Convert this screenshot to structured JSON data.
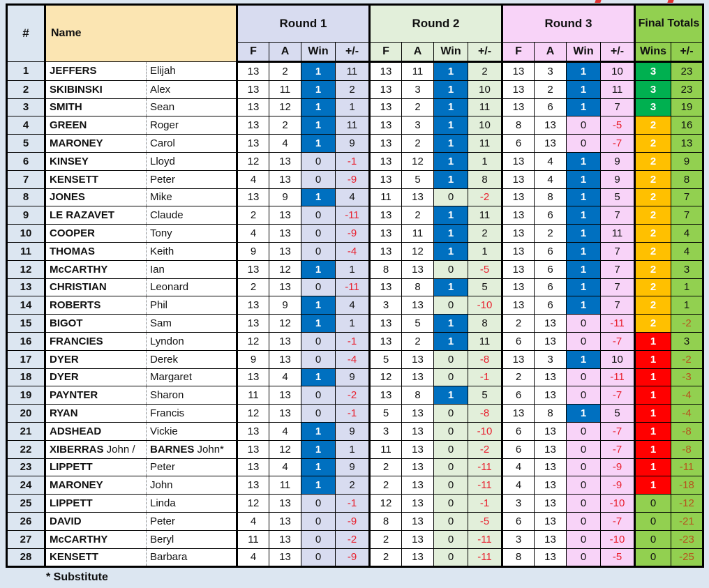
{
  "header": {
    "num": "#",
    "name": "Name",
    "rounds": [
      "Round 1",
      "Round 2",
      "Round 3"
    ],
    "round_cols": [
      "F",
      "A",
      "Win",
      "+/-"
    ],
    "final": "Final Totals",
    "final_cols": [
      "Wins",
      "+/-"
    ]
  },
  "footnote": "* Substitute",
  "colors": {
    "page_bg": "#DCE6F1",
    "name_header_bg": "#FBE5B2",
    "round1_tint": "#D8DCF0",
    "round2_tint": "#E2EFDA",
    "round3_tint": "#F8D3F8",
    "win_blue": "#0070C0",
    "wins3_green": "#00B050",
    "wins2_orange": "#FFC000",
    "wins1_red": "#FF0000",
    "final_green": "#92D050",
    "negative_red": "#E8202E",
    "negative_on_green": "#B5541E"
  },
  "rows": [
    {
      "num": 1,
      "name1b": "JEFFERS",
      "name1": "",
      "name2b": "",
      "name2": "Elijah",
      "r1": [
        13,
        2,
        1,
        11
      ],
      "r2": [
        13,
        11,
        1,
        2
      ],
      "r3": [
        13,
        3,
        1,
        10
      ],
      "wins": 3,
      "total": 23
    },
    {
      "num": 2,
      "name1b": "SKIBINSKI",
      "name1": "",
      "name2b": "",
      "name2": "Alex",
      "r1": [
        13,
        11,
        1,
        2
      ],
      "r2": [
        13,
        3,
        1,
        10
      ],
      "r3": [
        13,
        2,
        1,
        11
      ],
      "wins": 3,
      "total": 23
    },
    {
      "num": 3,
      "name1b": "SMITH",
      "name1": "",
      "name2b": "",
      "name2": "Sean",
      "r1": [
        13,
        12,
        1,
        1
      ],
      "r2": [
        13,
        2,
        1,
        11
      ],
      "r3": [
        13,
        6,
        1,
        7
      ],
      "wins": 3,
      "total": 19
    },
    {
      "num": 4,
      "name1b": "GREEN",
      "name1": "",
      "name2b": "",
      "name2": "Roger",
      "r1": [
        13,
        2,
        1,
        11
      ],
      "r2": [
        13,
        3,
        1,
        10
      ],
      "r3": [
        8,
        13,
        0,
        -5
      ],
      "wins": 2,
      "total": 16
    },
    {
      "num": 5,
      "name1b": "MARONEY",
      "name1": "",
      "name2b": "",
      "name2": "Carol",
      "r1": [
        13,
        4,
        1,
        9
      ],
      "r2": [
        13,
        2,
        1,
        11
      ],
      "r3": [
        6,
        13,
        0,
        -7
      ],
      "wins": 2,
      "total": 13
    },
    {
      "num": 6,
      "name1b": "KINSEY",
      "name1": "",
      "name2b": "",
      "name2": "Lloyd",
      "r1": [
        12,
        13,
        0,
        -1
      ],
      "r2": [
        13,
        12,
        1,
        1
      ],
      "r3": [
        13,
        4,
        1,
        9
      ],
      "wins": 2,
      "total": 9
    },
    {
      "num": 7,
      "name1b": "KENSETT",
      "name1": "",
      "name2b": "",
      "name2": "Peter",
      "r1": [
        4,
        13,
        0,
        -9
      ],
      "r2": [
        13,
        5,
        1,
        8
      ],
      "r3": [
        13,
        4,
        1,
        9
      ],
      "wins": 2,
      "total": 8
    },
    {
      "num": 8,
      "name1b": "JONES",
      "name1": "",
      "name2b": "",
      "name2": "Mike",
      "r1": [
        13,
        9,
        1,
        4
      ],
      "r2": [
        11,
        13,
        0,
        -2
      ],
      "r3": [
        13,
        8,
        1,
        5
      ],
      "wins": 2,
      "total": 7
    },
    {
      "num": 9,
      "name1b": "LE RAZAVET",
      "name1": "",
      "name2b": "",
      "name2": "Claude",
      "r1": [
        2,
        13,
        0,
        -11
      ],
      "r2": [
        13,
        2,
        1,
        11
      ],
      "r3": [
        13,
        6,
        1,
        7
      ],
      "wins": 2,
      "total": 7
    },
    {
      "num": 10,
      "name1b": "COOPER",
      "name1": "",
      "name2b": "",
      "name2": "Tony",
      "r1": [
        4,
        13,
        0,
        -9
      ],
      "r2": [
        13,
        11,
        1,
        2
      ],
      "r3": [
        13,
        2,
        1,
        11
      ],
      "wins": 2,
      "total": 4
    },
    {
      "num": 11,
      "name1b": "THOMAS",
      "name1": "",
      "name2b": "",
      "name2": "Keith",
      "r1": [
        9,
        13,
        0,
        -4
      ],
      "r2": [
        13,
        12,
        1,
        1
      ],
      "r3": [
        13,
        6,
        1,
        7
      ],
      "wins": 2,
      "total": 4
    },
    {
      "num": 12,
      "name1b": "McCARTHY",
      "name1": "",
      "name2b": "",
      "name2": "Ian",
      "r1": [
        13,
        12,
        1,
        1
      ],
      "r2": [
        8,
        13,
        0,
        -5
      ],
      "r3": [
        13,
        6,
        1,
        7
      ],
      "wins": 2,
      "total": 3
    },
    {
      "num": 13,
      "name1b": "CHRISTIAN",
      "name1": "",
      "name2b": "",
      "name2": "Leonard",
      "r1": [
        2,
        13,
        0,
        -11
      ],
      "r2": [
        13,
        8,
        1,
        5
      ],
      "r3": [
        13,
        6,
        1,
        7
      ],
      "wins": 2,
      "total": 1
    },
    {
      "num": 14,
      "name1b": "ROBERTS",
      "name1": "",
      "name2b": "",
      "name2": "Phil",
      "r1": [
        13,
        9,
        1,
        4
      ],
      "r2": [
        3,
        13,
        0,
        -10
      ],
      "r3": [
        13,
        6,
        1,
        7
      ],
      "wins": 2,
      "total": 1
    },
    {
      "num": 15,
      "name1b": "BIGOT",
      "name1": "",
      "name2b": "",
      "name2": "Sam",
      "r1": [
        13,
        12,
        1,
        1
      ],
      "r2": [
        13,
        5,
        1,
        8
      ],
      "r3": [
        2,
        13,
        0,
        -11
      ],
      "wins": 2,
      "total": -2
    },
    {
      "num": 16,
      "name1b": "FRANCIES",
      "name1": "",
      "name2b": "",
      "name2": "Lyndon",
      "r1": [
        12,
        13,
        0,
        -1
      ],
      "r2": [
        13,
        2,
        1,
        11
      ],
      "r3": [
        6,
        13,
        0,
        -7
      ],
      "wins": 1,
      "total": 3
    },
    {
      "num": 17,
      "name1b": "DYER",
      "name1": "",
      "name2b": "",
      "name2": "Derek",
      "r1": [
        9,
        13,
        0,
        -4
      ],
      "r2": [
        5,
        13,
        0,
        -8
      ],
      "r3": [
        13,
        3,
        1,
        10
      ],
      "wins": 1,
      "total": -2
    },
    {
      "num": 18,
      "name1b": "DYER",
      "name1": "",
      "name2b": "",
      "name2": "Margaret",
      "r1": [
        13,
        4,
        1,
        9
      ],
      "r2": [
        12,
        13,
        0,
        -1
      ],
      "r3": [
        2,
        13,
        0,
        -11
      ],
      "wins": 1,
      "total": -3
    },
    {
      "num": 19,
      "name1b": "PAYNTER",
      "name1": "",
      "name2b": "",
      "name2": "Sharon",
      "r1": [
        11,
        13,
        0,
        -2
      ],
      "r2": [
        13,
        8,
        1,
        5
      ],
      "r3": [
        6,
        13,
        0,
        -7
      ],
      "wins": 1,
      "total": -4
    },
    {
      "num": 20,
      "name1b": "RYAN",
      "name1": "",
      "name2b": "",
      "name2": "Francis",
      "r1": [
        12,
        13,
        0,
        -1
      ],
      "r2": [
        5,
        13,
        0,
        -8
      ],
      "r3": [
        13,
        8,
        1,
        5
      ],
      "wins": 1,
      "total": -4
    },
    {
      "num": 21,
      "name1b": "ADSHEAD",
      "name1": "",
      "name2b": "",
      "name2": "Vickie",
      "r1": [
        13,
        4,
        1,
        9
      ],
      "r2": [
        3,
        13,
        0,
        -10
      ],
      "r3": [
        6,
        13,
        0,
        -7
      ],
      "wins": 1,
      "total": -8
    },
    {
      "num": 22,
      "name1b": "XIBERRAS",
      "name1": " John /",
      "name2b": "BARNES",
      "name2": " John*",
      "r1": [
        13,
        12,
        1,
        1
      ],
      "r2": [
        11,
        13,
        0,
        -2
      ],
      "r3": [
        6,
        13,
        0,
        -7
      ],
      "wins": 1,
      "total": -8
    },
    {
      "num": 23,
      "name1b": "LIPPETT",
      "name1": "",
      "name2b": "",
      "name2": "Peter",
      "r1": [
        13,
        4,
        1,
        9
      ],
      "r2": [
        2,
        13,
        0,
        -11
      ],
      "r3": [
        4,
        13,
        0,
        -9
      ],
      "wins": 1,
      "total": -11
    },
    {
      "num": 24,
      "name1b": "MARONEY",
      "name1": "",
      "name2b": "",
      "name2": "John",
      "r1": [
        13,
        11,
        1,
        2
      ],
      "r2": [
        2,
        13,
        0,
        -11
      ],
      "r3": [
        4,
        13,
        0,
        -9
      ],
      "wins": 1,
      "total": -18
    },
    {
      "num": 25,
      "name1b": "LIPPETT",
      "name1": "",
      "name2b": "",
      "name2": "Linda",
      "r1": [
        12,
        13,
        0,
        -1
      ],
      "r2": [
        12,
        13,
        0,
        -1
      ],
      "r3": [
        3,
        13,
        0,
        -10
      ],
      "wins": 0,
      "total": -12
    },
    {
      "num": 26,
      "name1b": "DAVID",
      "name1": "",
      "name2b": "",
      "name2": "Peter",
      "r1": [
        4,
        13,
        0,
        -9
      ],
      "r2": [
        8,
        13,
        0,
        -5
      ],
      "r3": [
        6,
        13,
        0,
        -7
      ],
      "wins": 0,
      "total": -21
    },
    {
      "num": 27,
      "name1b": "McCARTHY",
      "name1": "",
      "name2b": "",
      "name2": "Beryl",
      "r1": [
        11,
        13,
        0,
        -2
      ],
      "r2": [
        2,
        13,
        0,
        -11
      ],
      "r3": [
        3,
        13,
        0,
        -10
      ],
      "wins": 0,
      "total": -23
    },
    {
      "num": 28,
      "name1b": "KENSETT",
      "name1": "",
      "name2b": "",
      "name2": "Barbara",
      "r1": [
        4,
        13,
        0,
        -9
      ],
      "r2": [
        2,
        13,
        0,
        -11
      ],
      "r3": [
        8,
        13,
        0,
        -5
      ],
      "wins": 0,
      "total": -25
    }
  ]
}
